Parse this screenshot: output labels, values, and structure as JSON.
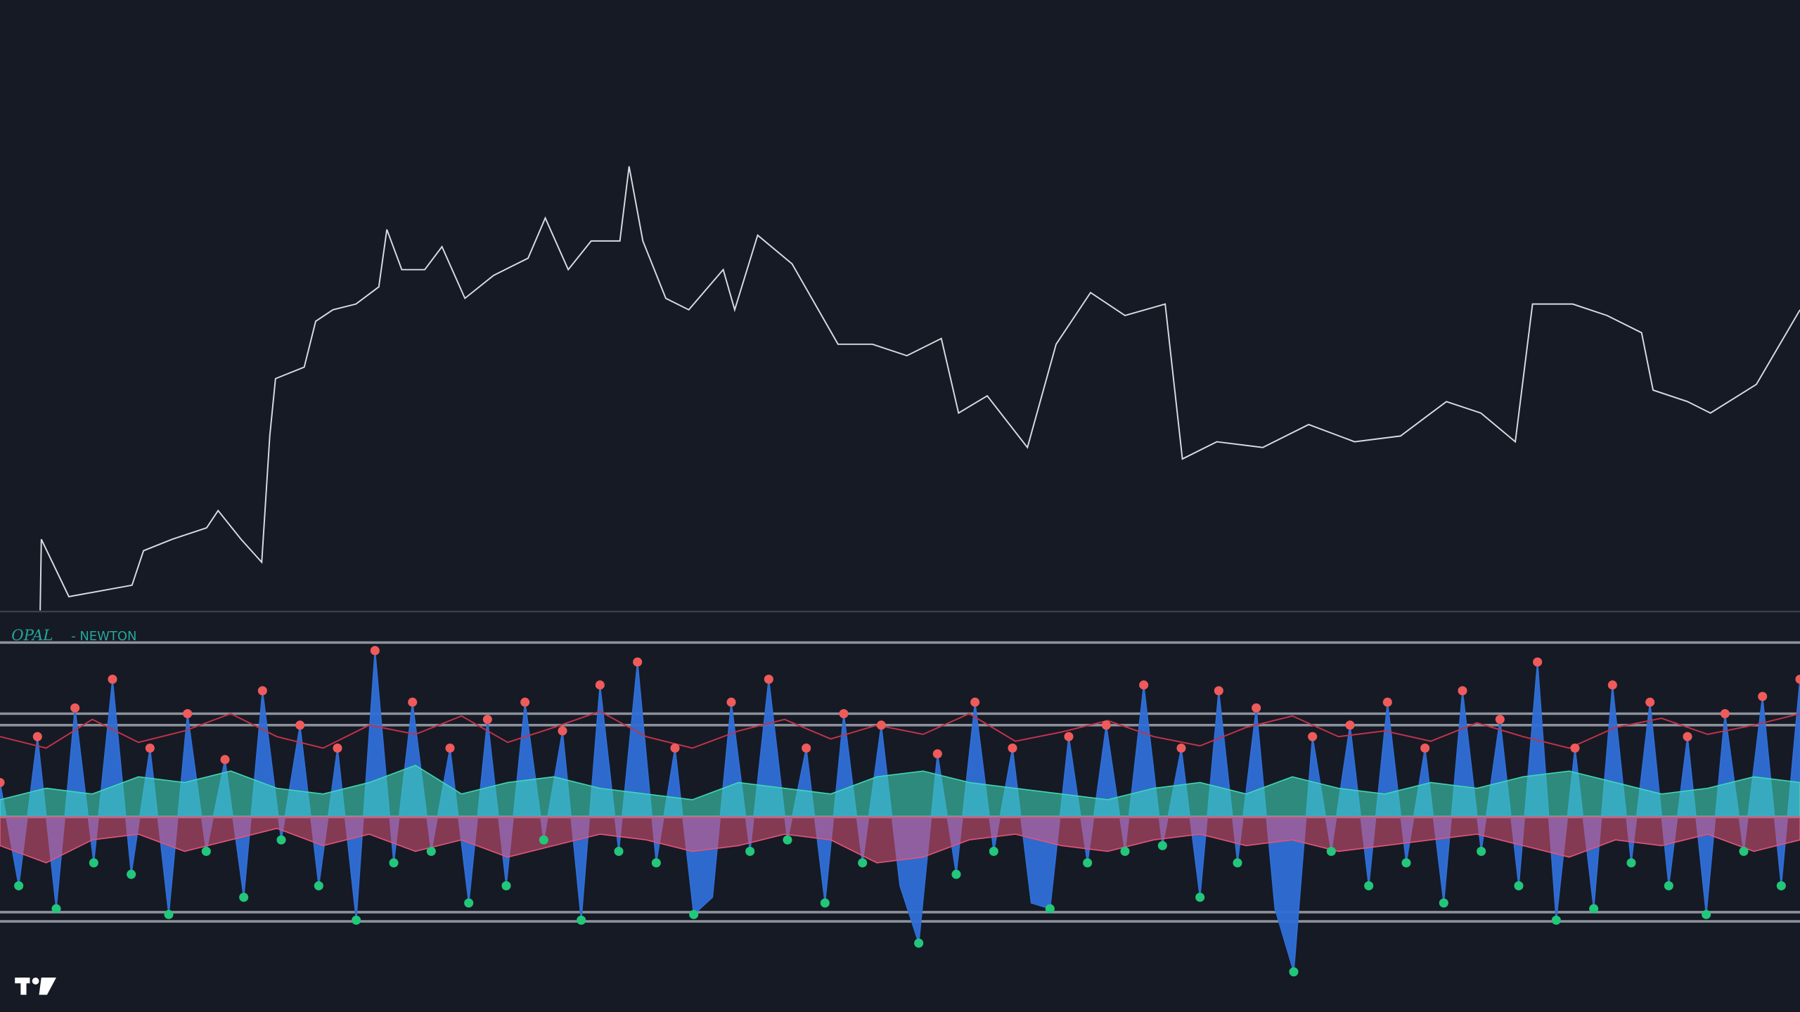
{
  "chart_data": [
    {
      "type": "line",
      "color": "#d9dbe0",
      "x": [
        35,
        36,
        60,
        115,
        125,
        150,
        180,
        190,
        210,
        228,
        235,
        240,
        265,
        275,
        290,
        310,
        330,
        337,
        350,
        370,
        385,
        405,
        430,
        460,
        475,
        495,
        515,
        540,
        548,
        560,
        580,
        600,
        630,
        640,
        660,
        690,
        710,
        730,
        760,
        790,
        820,
        835,
        860,
        895,
        920,
        950,
        980,
        1015,
        1030,
        1060,
        1100,
        1140,
        1180,
        1220,
        1260,
        1290,
        1320,
        1335,
        1370,
        1400,
        1430,
        1440,
        1470,
        1490,
        1530,
        1568
      ],
      "values": [
        0,
        62,
        12,
        22,
        52,
        62,
        72,
        87,
        62,
        42,
        152,
        202,
        212,
        252,
        262,
        267,
        282,
        332,
        297,
        297,
        317,
        272,
        292,
        307,
        342,
        297,
        322,
        322,
        387,
        322,
        272,
        262,
        297,
        262,
        327,
        302,
        267,
        232,
        232,
        222,
        237,
        172,
        187,
        142,
        232,
        277,
        257,
        267,
        132,
        147,
        142,
        162,
        147,
        152,
        182,
        172,
        147,
        267,
        267,
        257,
        242,
        192,
        182,
        172,
        197,
        262
      ],
      "xlim": [
        0,
        1568
      ],
      "ylim": [
        0,
        532
      ]
    },
    {
      "type": "oscillator",
      "title": "OPAL",
      "subtitle": "- NEWTON",
      "series": [
        {
          "color": "#2f6fd6",
          "values": [
            30,
            -60,
            70,
            -80,
            95,
            -40,
            120,
            -50,
            60,
            -85,
            90,
            -30,
            50,
            -70,
            110,
            -20,
            80,
            -60,
            60,
            -90,
            145,
            -40,
            100,
            -30,
            60,
            -75,
            85,
            -60,
            100,
            -20,
            75,
            -90,
            115,
            -30,
            135,
            -40,
            60,
            -85,
            -70,
            100,
            -30,
            120,
            -20,
            60,
            -75,
            90,
            -40,
            80,
            -60,
            -110,
            55,
            -50,
            100,
            -30,
            60,
            -75,
            -80,
            70,
            -40,
            80,
            -30,
            115,
            -25,
            60,
            -70,
            110,
            -40,
            95,
            -80,
            -135,
            70,
            -30,
            80,
            -60,
            100,
            -40,
            60,
            -75,
            110,
            -30,
            85,
            -60,
            135,
            -90,
            60,
            -80,
            115,
            -40,
            100,
            -60,
            70,
            -85,
            90,
            -30,
            105,
            -60,
            120
          ]
        },
        {
          "color": "#c2334a",
          "values": [
            70,
            60,
            85,
            65,
            75,
            90,
            70,
            60,
            80,
            72,
            88,
            65,
            78,
            92,
            70,
            60,
            75,
            85,
            68,
            80,
            72,
            90,
            66,
            74,
            84,
            70,
            62,
            78,
            88,
            70,
            75,
            66,
            82,
            70,
            60,
            78,
            86,
            72,
            80,
            90
          ]
        },
        {
          "color": "#3fd6b8",
          "values": [
            15,
            25,
            20,
            35,
            30,
            40,
            25,
            20,
            30,
            45,
            20,
            30,
            35,
            25,
            20,
            15,
            30,
            25,
            20,
            35,
            40,
            30,
            25,
            20,
            15,
            25,
            30,
            20,
            35,
            25,
            20,
            30,
            25,
            35,
            40,
            30,
            20,
            25,
            35,
            30
          ]
        },
        {
          "color": "#e0557a",
          "values": [
            -25,
            -40,
            -20,
            -15,
            -30,
            -20,
            -10,
            -25,
            -15,
            -30,
            -20,
            -35,
            -25,
            -15,
            -20,
            -30,
            -25,
            -15,
            -20,
            -40,
            -35,
            -20,
            -15,
            -25,
            -30,
            -20,
            -15,
            -25,
            -20,
            -30,
            -25,
            -20,
            -15,
            -25,
            -35,
            -20,
            -25,
            -15,
            -30,
            -20
          ]
        }
      ],
      "levels": [
        152,
        90,
        80,
        0,
        -83,
        -91
      ],
      "ylim": [
        -170,
        172
      ]
    }
  ]
}
